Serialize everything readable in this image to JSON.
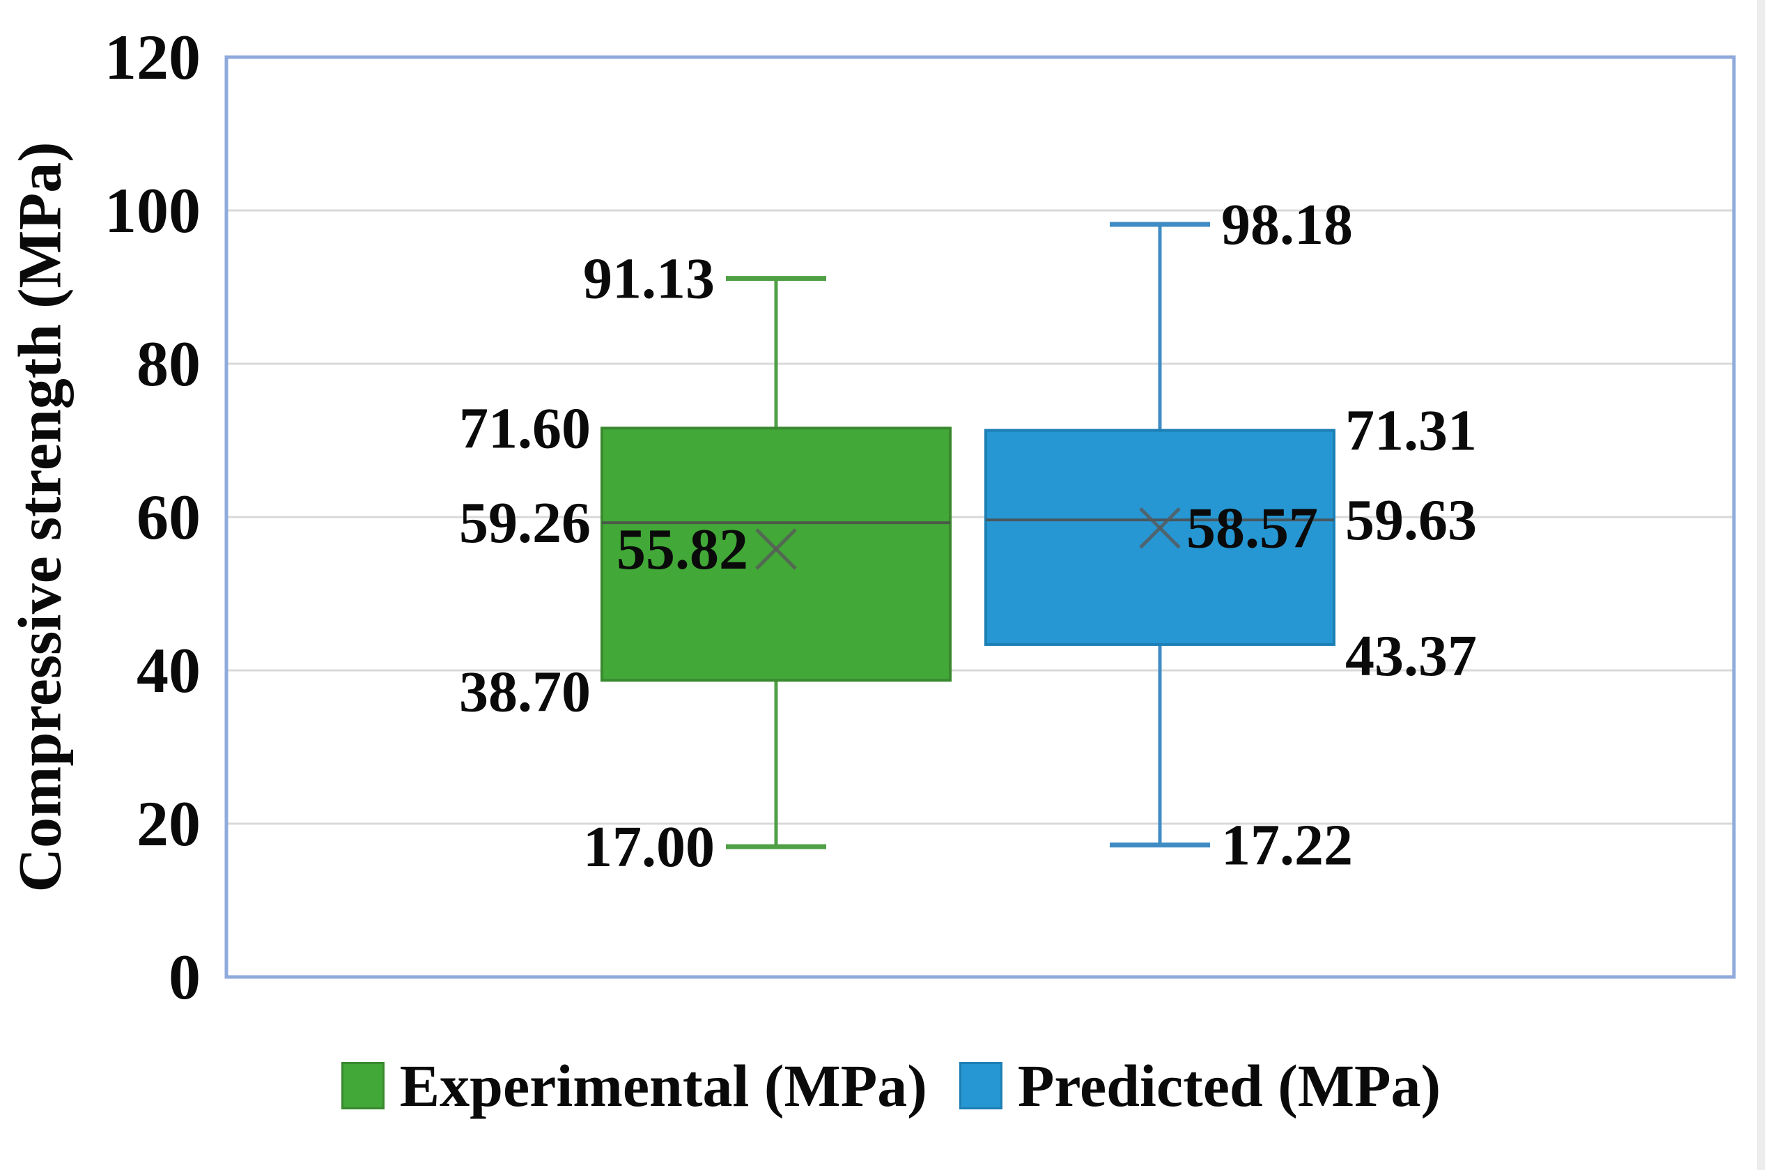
{
  "chart_data": {
    "type": "boxplot",
    "title": "",
    "xlabel": "",
    "ylabel": "Compressive strength (MPa)",
    "ylim": [
      0,
      120
    ],
    "yticks": [
      0,
      20,
      40,
      60,
      80,
      100,
      120
    ],
    "grid": "horizontal gridlines every 20 MPa",
    "legend_position": "bottom-center",
    "plot_border_color": "#8faadc",
    "gridline_color": "#d9d9d9",
    "median_line_color": "#4d4d4d",
    "mean_marker": "x",
    "mean_marker_color": "#595959",
    "series": [
      {
        "name": "Experimental (MPa)",
        "color": "#42a838",
        "stroke_color": "#39892f",
        "whisker_color": "#4f9f45",
        "label_side": "left",
        "stats": {
          "min": "17.00",
          "q1": "38.70",
          "median": "59.26",
          "mean": "55.82",
          "q3": "71.60",
          "max": "91.13"
        }
      },
      {
        "name": "Predicted (MPa)",
        "color": "#2697d3",
        "stroke_color": "#1d7fb5",
        "whisker_color": "#3f8cc4",
        "label_side": "right",
        "stats": {
          "min": "17.22",
          "q1": "43.37",
          "median": "59.63",
          "mean": "58.57",
          "q3": "71.31",
          "max": "98.18"
        }
      }
    ]
  }
}
